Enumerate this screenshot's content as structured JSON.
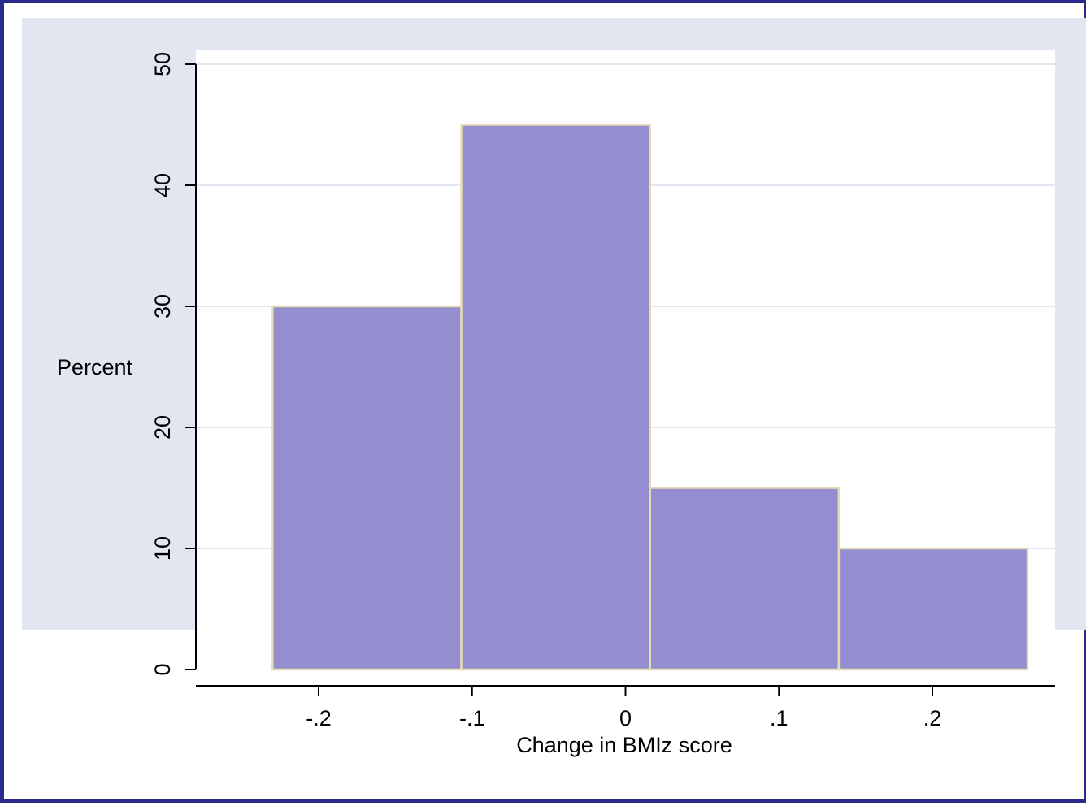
{
  "chart_data": {
    "type": "bar",
    "subtype": "histogram",
    "xlabel": "Change in BMIz score",
    "ylabel": "Percent",
    "xlim": [
      -0.28,
      0.28
    ],
    "ylim": [
      0,
      50
    ],
    "x_ticks": [
      -0.2,
      -0.1,
      0,
      0.1,
      0.2
    ],
    "x_tick_labels": [
      "-.2",
      "-.1",
      "0",
      ".1",
      ".2"
    ],
    "y_ticks": [
      0,
      10,
      20,
      30,
      40,
      50
    ],
    "y_tick_labels": [
      "0",
      "10",
      "20",
      "30",
      "40",
      "50"
    ],
    "bins": [
      {
        "x_start": -0.23,
        "x_end": -0.107,
        "value": 30
      },
      {
        "x_start": -0.107,
        "x_end": 0.016,
        "value": 45
      },
      {
        "x_start": 0.016,
        "x_end": 0.139,
        "value": 15
      },
      {
        "x_start": 0.139,
        "x_end": 0.262,
        "value": 10
      }
    ],
    "grid": {
      "horizontal": true,
      "vertical": false
    },
    "colors": {
      "bar_fill": "#948ed0",
      "bar_stroke": "#e6dcb4",
      "outer_background": "#e2e6f0",
      "plot_background": "#ffffff",
      "grid": "#e2e6f0",
      "frame_border": "#2a2a8c",
      "axis": "#000000"
    }
  }
}
